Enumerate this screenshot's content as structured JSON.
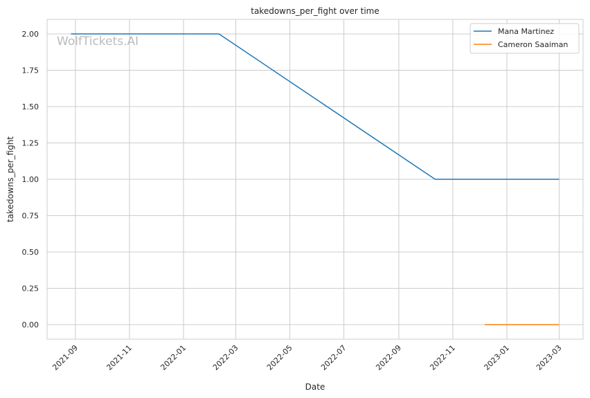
{
  "chart_data": {
    "type": "line",
    "title": "takedowns_per_fight over time",
    "xlabel": "Date",
    "ylabel": "takedowns_per_fight",
    "xlim": [
      "2021-07-31",
      "2023-03-28"
    ],
    "ylim": [
      -0.1,
      2.1
    ],
    "grid": true,
    "legend_placement": "top-right",
    "x_ticks": [
      "2021-09",
      "2021-11",
      "2022-01",
      "2022-03",
      "2022-05",
      "2022-07",
      "2022-09",
      "2022-11",
      "2023-01",
      "2023-03"
    ],
    "y_ticks": [
      "0.00",
      "0.25",
      "0.50",
      "0.75",
      "1.00",
      "1.25",
      "1.50",
      "1.75",
      "2.00"
    ],
    "series": [
      {
        "name": "Mana Martinez",
        "color": "#1f77b4",
        "x": [
          "2021-08-27",
          "2022-02-10",
          "2022-10-12",
          "2023-03-01"
        ],
        "y": [
          2.0,
          2.0,
          1.0,
          1.0
        ]
      },
      {
        "name": "Cameron Saaiman",
        "color": "#ff7f0e",
        "x": [
          "2022-12-07",
          "2023-03-01"
        ],
        "y": [
          0.0,
          0.0
        ]
      }
    ],
    "watermark": "WolfTickets.AI"
  }
}
